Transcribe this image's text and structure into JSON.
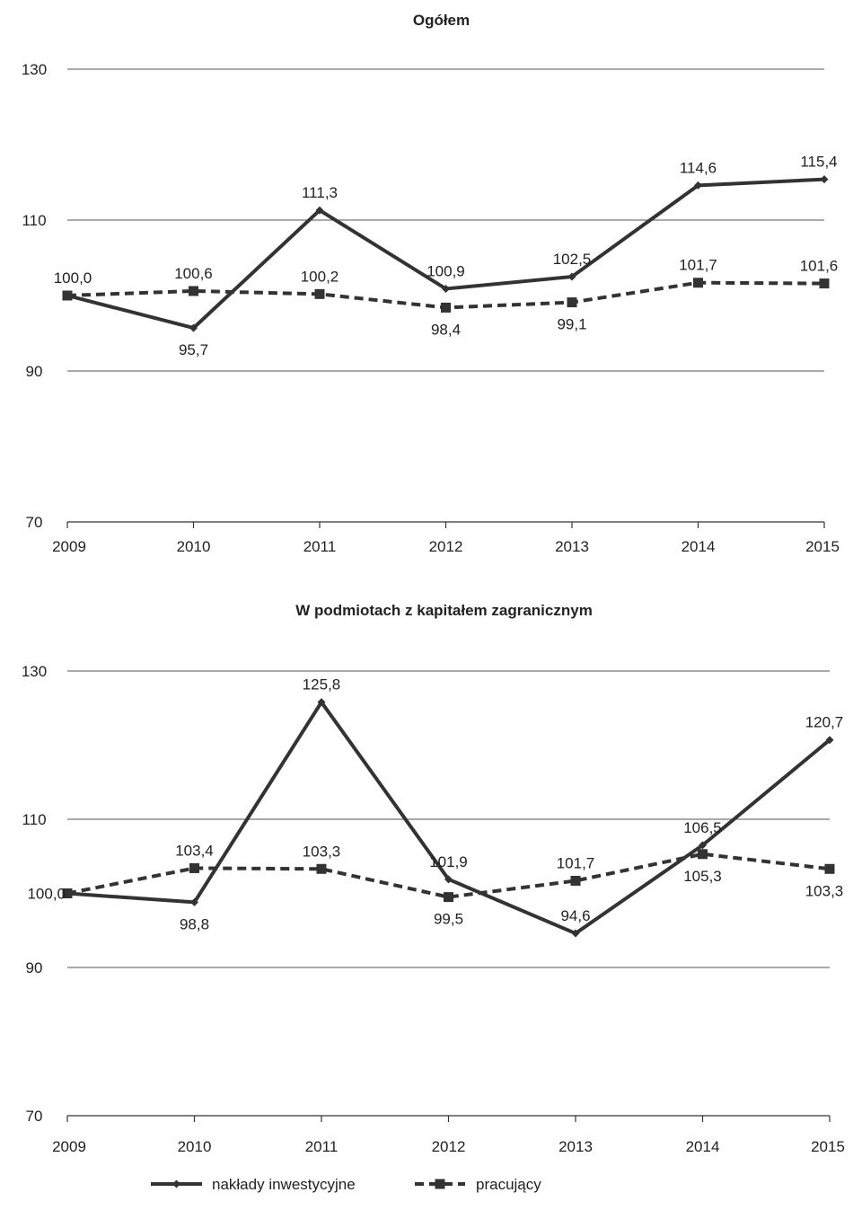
{
  "chart_data": [
    {
      "type": "line",
      "title": "Ogółem",
      "categories": [
        "2009",
        "2010",
        "2011",
        "2012",
        "2013",
        "2014",
        "2015"
      ],
      "ylim": [
        70,
        130
      ],
      "yticks": [
        70,
        90,
        110,
        130
      ],
      "grid": true,
      "series": [
        {
          "name": "nakłady inwestycyjne",
          "values": [
            100.0,
            95.7,
            111.3,
            100.9,
            102.5,
            114.6,
            115.4
          ],
          "labels": [
            "100,0",
            "95,7",
            "111,3",
            "100,9",
            "102,5",
            "114,6",
            "115,4"
          ],
          "label_pos": [
            "none",
            "below",
            "above",
            "above",
            "above",
            "above",
            "above"
          ],
          "style": "solid",
          "marker": "diamond",
          "color": "#333333"
        },
        {
          "name": "pracujący",
          "values": [
            100.0,
            100.6,
            100.2,
            98.4,
            99.1,
            101.7,
            101.6
          ],
          "labels": [
            "100,0",
            "100,6",
            "100,2",
            "98,4",
            "99,1",
            "101,7",
            "101,6"
          ],
          "label_pos": [
            "above",
            "above",
            "above",
            "below",
            "below",
            "above",
            "above"
          ],
          "style": "dashed",
          "marker": "square",
          "color": "#333333"
        }
      ]
    },
    {
      "type": "line",
      "title": "W podmiotach z kapitałem zagranicznym",
      "categories": [
        "2009",
        "2010",
        "2011",
        "2012",
        "2013",
        "2014",
        "2015"
      ],
      "ylim": [
        70,
        130
      ],
      "yticks": [
        70,
        90,
        110,
        130
      ],
      "grid": true,
      "series": [
        {
          "name": "nakłady inwestycyjne",
          "values": [
            100.0,
            98.8,
            125.8,
            101.9,
            94.6,
            106.5,
            120.7
          ],
          "labels": [
            "100,0",
            "98,8",
            "125,8",
            "101,9",
            "94,6",
            "106,5",
            "120,7"
          ],
          "label_pos": [
            "left",
            "below",
            "above",
            "above",
            "above",
            "above",
            "above"
          ],
          "style": "solid",
          "marker": "diamond",
          "color": "#333333"
        },
        {
          "name": "pracujący",
          "values": [
            100.0,
            103.4,
            103.3,
            99.5,
            101.7,
            105.3,
            103.3
          ],
          "labels": [
            "",
            "103,4",
            "103,3",
            "99,5",
            "101,7",
            "105,3",
            "103,3"
          ],
          "label_pos": [
            "none",
            "above",
            "above",
            "below",
            "above",
            "below",
            "below"
          ],
          "style": "dashed",
          "marker": "square",
          "color": "#333333"
        }
      ]
    }
  ],
  "legend": {
    "position": "bottom",
    "items": [
      {
        "label": "nakłady inwestycyjne",
        "style": "solid",
        "marker": "diamond"
      },
      {
        "label": "pracujący",
        "style": "dashed",
        "marker": "square"
      }
    ]
  }
}
